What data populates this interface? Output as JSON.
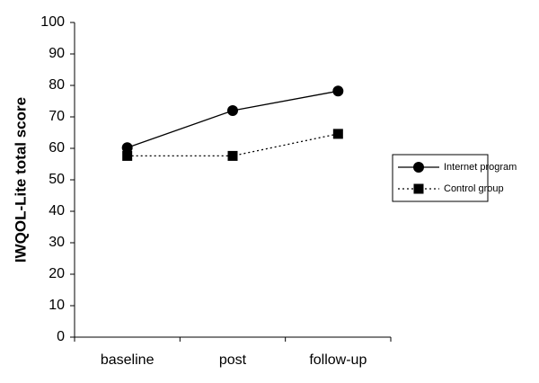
{
  "chart_data": {
    "type": "line",
    "y_label": "IWQOL-Lite total score",
    "categories": [
      "baseline",
      "post",
      "follow-up"
    ],
    "series": [
      {
        "name": "Internet program",
        "color": "#000000",
        "line_style": "solid",
        "marker": "circle",
        "values": [
          60.2,
          72,
          78.2
        ]
      },
      {
        "name": "Control group",
        "color": "#000000",
        "line_style": "dotted",
        "marker": "square",
        "values": [
          57.6,
          57.6,
          64.6
        ]
      }
    ],
    "ylim": [
      0,
      100
    ],
    "yticks": [
      0,
      10,
      20,
      30,
      40,
      50,
      60,
      70,
      80,
      90,
      100
    ],
    "grid": false,
    "legend": "right"
  }
}
